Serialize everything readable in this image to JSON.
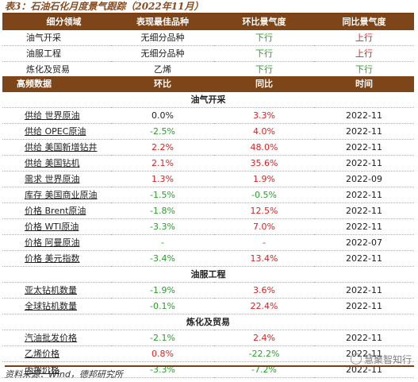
{
  "title": "表3：石油石化月度景气跟踪（2022年11月）",
  "summary": {
    "headers": [
      "细分领域",
      "表现最佳品种",
      "环比景气度",
      "同比景气度"
    ],
    "rows": [
      {
        "sector": "油气开采",
        "best": "无细分品种",
        "mom": "下行",
        "mom_dir": "neg",
        "yoy": "上行",
        "yoy_dir": "pos"
      },
      {
        "sector": "油服工程",
        "best": "无细分品种",
        "mom": "下行",
        "mom_dir": "neg",
        "yoy": "上行",
        "yoy_dir": "pos"
      },
      {
        "sector": "炼化及贸易",
        "best": "乙烯",
        "mom": "下行",
        "mom_dir": "neg",
        "yoy": "下行",
        "yoy_dir": "neg"
      }
    ]
  },
  "detail": {
    "headers": [
      "高频数据",
      "环比",
      "同比",
      "时间"
    ],
    "sections": [
      {
        "name": "油气开采",
        "rows": [
          {
            "label": "供给 世界原油",
            "mom": "0.0%",
            "mom_dir": "neu",
            "yoy": "3.3%",
            "yoy_dir": "pos",
            "time": "2022-11"
          },
          {
            "label": "供给 OPEC原油",
            "mom": "-2.5%",
            "mom_dir": "neg",
            "yoy": "4.0%",
            "yoy_dir": "pos",
            "time": "2022-11"
          },
          {
            "label": "供给 美国新增钻井",
            "mom": "2.2%",
            "mom_dir": "pos",
            "yoy": "48.0%",
            "yoy_dir": "pos",
            "time": "2022-11"
          },
          {
            "label": "供给 美国钻机",
            "mom": "2.1%",
            "mom_dir": "pos",
            "yoy": "35.6%",
            "yoy_dir": "pos",
            "time": "2022-11"
          },
          {
            "label": "需求 世界原油",
            "mom": "1.3%",
            "mom_dir": "pos",
            "yoy": "1.9%",
            "yoy_dir": "pos",
            "time": "2022-09"
          },
          {
            "label": "库存 美国商业原油",
            "mom": "-1.5%",
            "mom_dir": "neg",
            "yoy": "-0.5%",
            "yoy_dir": "neg",
            "time": "2022-11"
          },
          {
            "label": "价格 Brent原油",
            "mom": "-1.8%",
            "mom_dir": "neg",
            "yoy": "12.5%",
            "yoy_dir": "pos",
            "time": "2022-11"
          },
          {
            "label": "价格 WTI原油",
            "mom": "-3.3%",
            "mom_dir": "neg",
            "yoy": "7.0%",
            "yoy_dir": "pos",
            "time": "2022-11"
          },
          {
            "label": "价格 阿曼原油",
            "mom": "-",
            "mom_dir": "neg",
            "yoy": "-",
            "yoy_dir": "pos",
            "time": "2022-07"
          },
          {
            "label": "价格 美元指数",
            "mom": "-3.4%",
            "mom_dir": "neg",
            "yoy": "13.4%",
            "yoy_dir": "pos",
            "time": "2022-11"
          }
        ]
      },
      {
        "name": "油服工程",
        "rows": [
          {
            "label": "亚太钻机数量",
            "mom": "-1.9%",
            "mom_dir": "neg",
            "yoy": "3.6%",
            "yoy_dir": "pos",
            "time": "2022-11"
          },
          {
            "label": "全球钻机数量",
            "mom": "-0.1%",
            "mom_dir": "neg",
            "yoy": "22.4%",
            "yoy_dir": "pos",
            "time": "2022-11"
          }
        ]
      },
      {
        "name": "炼化及贸易",
        "rows": [
          {
            "label": "汽油批发价格",
            "mom": "-2.1%",
            "mom_dir": "neg",
            "yoy": "2.4%",
            "yoy_dir": "pos",
            "time": "2022-11"
          },
          {
            "label": "乙烯价格",
            "mom": "0.8%",
            "mom_dir": "pos",
            "yoy": "-22.2%",
            "yoy_dir": "neg",
            "time": "2022-11"
          },
          {
            "label": "丙烯价格",
            "mom": "-3.3%",
            "mom_dir": "neg",
            "yoy": "-7.2%",
            "yoy_dir": "neg",
            "time": "2022-11"
          }
        ]
      }
    ]
  },
  "footer": "资料来源：Wind，德邦研究所",
  "watermark": "慧聚智知行",
  "colors": {
    "header_bg": "#7d4518",
    "up": "#e02020",
    "down": "#2aa02a",
    "title": "#8b4a1c"
  }
}
